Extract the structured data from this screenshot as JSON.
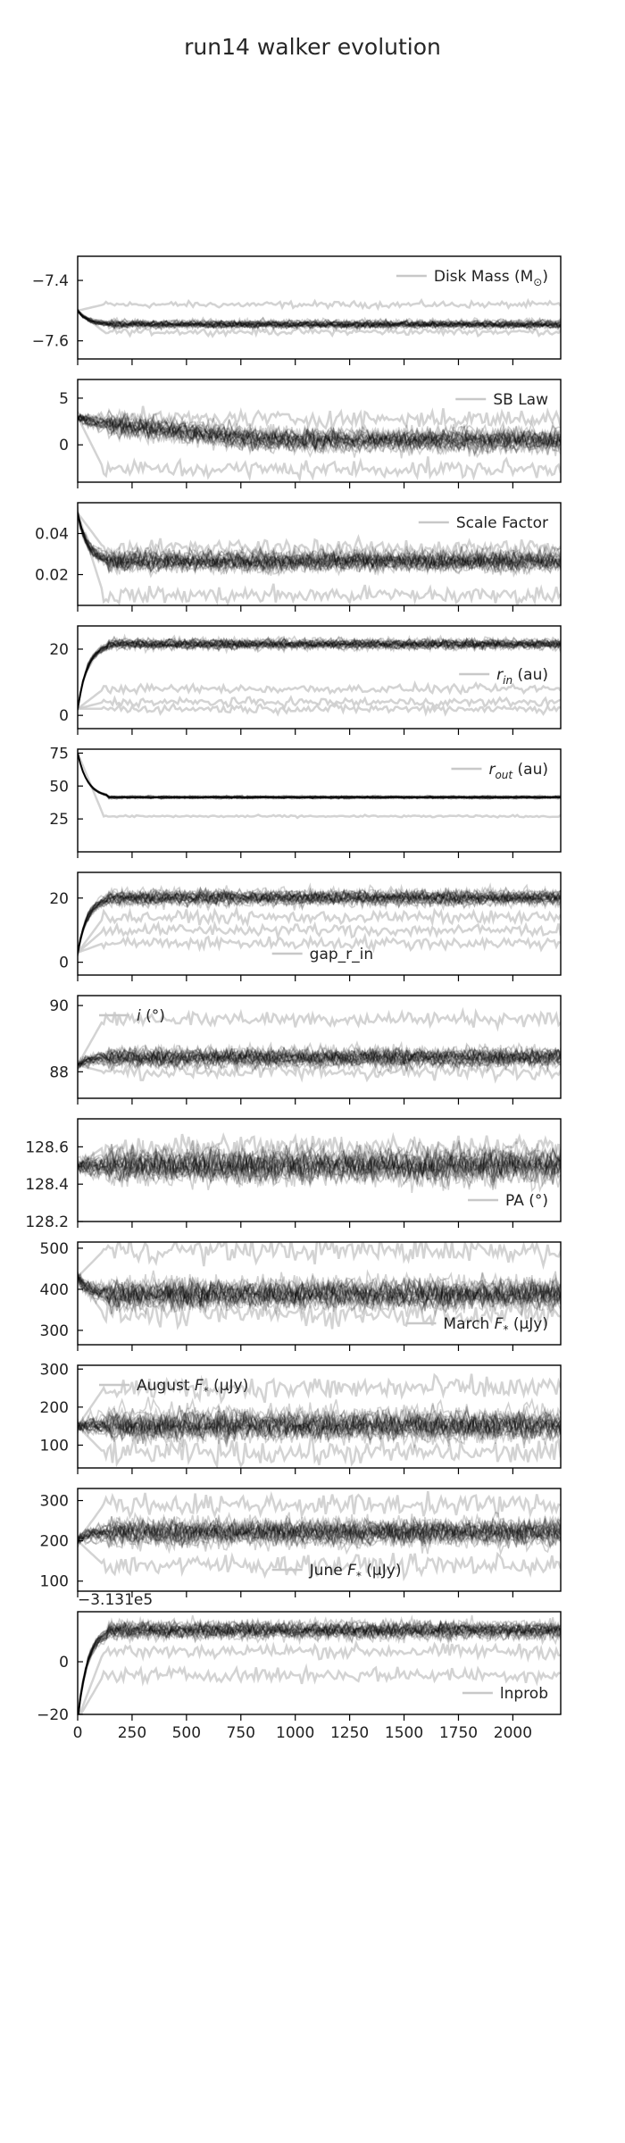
{
  "title": "run14 walker evolution",
  "chart_data": {
    "type": "line",
    "title": "run14 walker evolution",
    "x_range": [
      0,
      2220
    ],
    "x_ticks": [
      0,
      250,
      500,
      750,
      1000,
      1250,
      1500,
      1750,
      2000
    ],
    "x_tick_labels": [
      "0",
      "250",
      "500",
      "750",
      "1000",
      "1250",
      "1500",
      "1750",
      "2000"
    ],
    "n_walkers_approx": 40,
    "line_color": "#000000",
    "stray_walker_color": "#c8c8c8",
    "panels": [
      {
        "label": "Disk Mass ($M_{\\odot}$)",
        "label_text": "Disk Mass (M",
        "label_sub": "⊙",
        "label_tail": ")",
        "legend": "top-right",
        "ylim": [
          -7.66,
          -7.32
        ],
        "yticks": [
          -7.4,
          -7.6
        ],
        "ytick_labels": [
          "−7.4",
          "−7.6"
        ],
        "burn_start": -7.5,
        "median": -7.545,
        "spread": 0.01,
        "stray": [
          -7.48,
          -7.57
        ]
      },
      {
        "label": "SB Law",
        "label_text": "SB Law",
        "legend": "top-right",
        "ylim": [
          -4,
          7
        ],
        "yticks": [
          5,
          0
        ],
        "ytick_labels": [
          "5",
          "0"
        ],
        "burn_start": 3,
        "median_start": 2.5,
        "median_end": 0.5,
        "spread": 0.9,
        "stray": [
          -2.6,
          2.8
        ]
      },
      {
        "label": "Scale Factor",
        "label_text": "Scale Factor",
        "legend": "top-right",
        "ylim": [
          0.005,
          0.055
        ],
        "yticks": [
          0.04,
          0.02
        ],
        "ytick_labels": [
          "0.04",
          "0.02"
        ],
        "burn_start": 0.05,
        "median": 0.027,
        "spread": 0.004,
        "stray": [
          0.01,
          0.033
        ]
      },
      {
        "label": "$r_{in}$ (au)",
        "label_text": "r",
        "label_sub": "in",
        "label_tail": " (au)",
        "legend": "center-right",
        "ylim": [
          -4,
          27
        ],
        "yticks": [
          20,
          0
        ],
        "ytick_labels": [
          "20",
          "0"
        ],
        "burn_start": 2,
        "median": 21.5,
        "spread": 1.2,
        "stray": [
          4,
          8,
          2
        ]
      },
      {
        "label": "$r_{out}$ (au)",
        "label_text": "r",
        "label_sub": "out",
        "label_tail": " (au)",
        "legend": "top-right",
        "ylim": [
          0,
          78
        ],
        "yticks": [
          75,
          50,
          25
        ],
        "ytick_labels": [
          "75",
          "50",
          "25"
        ],
        "burn_start": 75,
        "median": 41.5,
        "spread": 0.8,
        "stray": [
          27
        ]
      },
      {
        "label": "gap_r_in",
        "label_text": "gap_r_in",
        "legend": "bottom-center",
        "ylim": [
          -4,
          28
        ],
        "yticks": [
          20,
          0
        ],
        "ytick_labels": [
          "20",
          "0"
        ],
        "burn_start": 3,
        "median": 20,
        "spread": 1.8,
        "stray": [
          6,
          10,
          14
        ]
      },
      {
        "label": "$i$ (°)",
        "label_text": "i",
        "label_italic": true,
        "label_tail": " (°)",
        "legend": "top-left",
        "ylim": [
          87.2,
          90.3
        ],
        "yticks": [
          90,
          88
        ],
        "ytick_labels": [
          "90",
          "88"
        ],
        "burn_start": 88.2,
        "median": 88.45,
        "spread": 0.22,
        "stray": [
          89.6,
          88.0
        ]
      },
      {
        "label": "PA  (°)",
        "label_text": "PA  (°)",
        "legend": "bottom-right",
        "ylim": [
          128.2,
          128.75
        ],
        "yticks": [
          128.6,
          128.4,
          128.2
        ],
        "ytick_labels": [
          "128.6",
          "128.4",
          "128.2"
        ],
        "burn_start": 128.5,
        "median": 128.5,
        "spread": 0.07,
        "stray": [
          128.6
        ]
      },
      {
        "label": "March $F_{*}$ ($\\mu$Jy)",
        "label_text": "March F",
        "label_sub": "*",
        "label_tail": " (μJy)",
        "legend": "bottom-right",
        "ylim": [
          265,
          515
        ],
        "yticks": [
          500,
          400,
          300
        ],
        "ytick_labels": [
          "500",
          "400",
          "300"
        ],
        "burn_start": 430,
        "median": 390,
        "spread": 28,
        "stray": [
          495,
          340
        ]
      },
      {
        "label": "August $F_{*}$ ($\\mu$Jy)",
        "label_text": "August F",
        "label_sub": "*",
        "label_tail": " (μJy)",
        "legend": "top-left",
        "ylim": [
          40,
          310
        ],
        "yticks": [
          300,
          200,
          100
        ],
        "ytick_labels": [
          "300",
          "200",
          "100"
        ],
        "burn_start": 150,
        "median": 155,
        "spread": 30,
        "stray": [
          250,
          80
        ]
      },
      {
        "label": "June $F_{*}$ ($\\mu$Jy)",
        "label_text": "June F",
        "label_sub": "*",
        "label_tail": " (μJy)",
        "legend": "bottom-center",
        "ylim": [
          75,
          330
        ],
        "yticks": [
          300,
          200,
          100
        ],
        "ytick_labels": [
          "300",
          "200",
          "100"
        ],
        "burn_start": 200,
        "median": 220,
        "spread": 25,
        "stray": [
          290,
          140
        ]
      },
      {
        "label": "lnprob",
        "label_text": "lnprob",
        "legend": "bottom-right",
        "ylim": [
          -20,
          19
        ],
        "yticks": [
          0,
          -20
        ],
        "ytick_labels": [
          "0",
          "−20"
        ],
        "offset_text": "−3.131e5",
        "burn_start": -22,
        "median": 12,
        "spread": 2.5,
        "stray": [
          -5,
          4
        ]
      }
    ]
  }
}
